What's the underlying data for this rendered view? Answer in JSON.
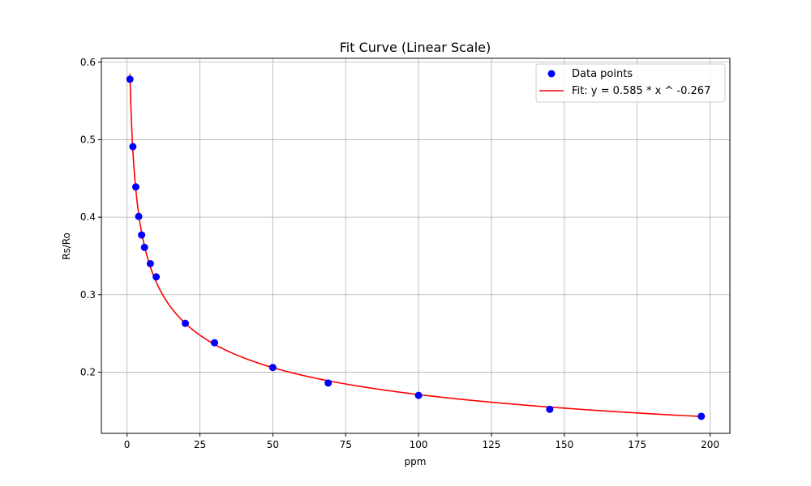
{
  "chart_data": {
    "type": "scatter",
    "title": "Fit Curve (Linear Scale)",
    "xlabel": "ppm",
    "ylabel": "Rs/Ro",
    "xlim": [
      -8.8,
      206.8
    ],
    "ylim": [
      0.121,
      0.605
    ],
    "xticks": [
      0,
      25,
      50,
      75,
      100,
      125,
      150,
      175,
      200
    ],
    "yticks": [
      0.2,
      0.3,
      0.4,
      0.5,
      0.6
    ],
    "xtick_labels": [
      "0",
      "25",
      "50",
      "75",
      "100",
      "125",
      "150",
      "175",
      "200"
    ],
    "ytick_labels": [
      "0.2",
      "0.3",
      "0.4",
      "0.5",
      "0.6"
    ],
    "grid": true,
    "legend_position": "upper right",
    "legend": {
      "points_label": "Data points",
      "fit_label": "Fit: y = 0.585 * x ^ -0.267"
    },
    "series": [
      {
        "name": "Data points",
        "kind": "scatter",
        "color": "#0000ff",
        "x": [
          1,
          2,
          3,
          4,
          5,
          6,
          8,
          10,
          20,
          30,
          50,
          69,
          100,
          145,
          197
        ],
        "y": [
          0.578,
          0.491,
          0.439,
          0.401,
          0.377,
          0.361,
          0.34,
          0.323,
          0.263,
          0.238,
          0.206,
          0.186,
          0.17,
          0.152,
          0.143
        ]
      },
      {
        "name": "Fit: y = 0.585 * x ^ -0.267",
        "kind": "line",
        "color": "#ff0000",
        "function": "power",
        "a": 0.585,
        "b": -0.267,
        "x_range": [
          1,
          197
        ]
      }
    ]
  }
}
